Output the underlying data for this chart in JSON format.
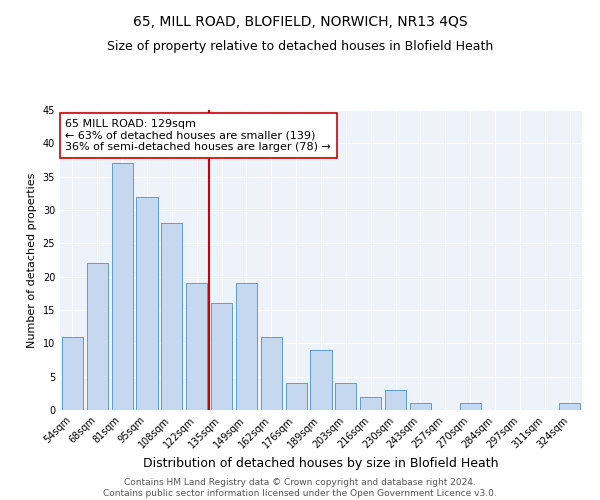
{
  "title": "65, MILL ROAD, BLOFIELD, NORWICH, NR13 4QS",
  "subtitle": "Size of property relative to detached houses in Blofield Heath",
  "xlabel": "Distribution of detached houses by size in Blofield Heath",
  "ylabel": "Number of detached properties",
  "categories": [
    "54sqm",
    "68sqm",
    "81sqm",
    "95sqm",
    "108sqm",
    "122sqm",
    "135sqm",
    "149sqm",
    "162sqm",
    "176sqm",
    "189sqm",
    "203sqm",
    "216sqm",
    "230sqm",
    "243sqm",
    "257sqm",
    "270sqm",
    "284sqm",
    "297sqm",
    "311sqm",
    "324sqm"
  ],
  "values": [
    11,
    22,
    37,
    32,
    28,
    19,
    16,
    19,
    11,
    4,
    9,
    4,
    2,
    3,
    1,
    0,
    1,
    0,
    0,
    0,
    1
  ],
  "bar_color": "#c5d8f0",
  "bar_edge_color": "#5b9bd5",
  "vline_color": "#cc0000",
  "annotation_text": "65 MILL ROAD: 129sqm\n← 63% of detached houses are smaller (139)\n36% of semi-detached houses are larger (78) →",
  "annotation_box_color": "white",
  "annotation_box_edge": "#cc0000",
  "ylim": [
    0,
    45
  ],
  "yticks": [
    0,
    5,
    10,
    15,
    20,
    25,
    30,
    35,
    40,
    45
  ],
  "footer1": "Contains HM Land Registry data © Crown copyright and database right 2024.",
  "footer2": "Contains public sector information licensed under the Open Government Licence v3.0.",
  "bg_color": "#eef2f9",
  "title_fontsize": 10,
  "subtitle_fontsize": 9,
  "xlabel_fontsize": 9,
  "ylabel_fontsize": 8,
  "tick_fontsize": 7,
  "annotation_fontsize": 8,
  "footer_fontsize": 6.5
}
